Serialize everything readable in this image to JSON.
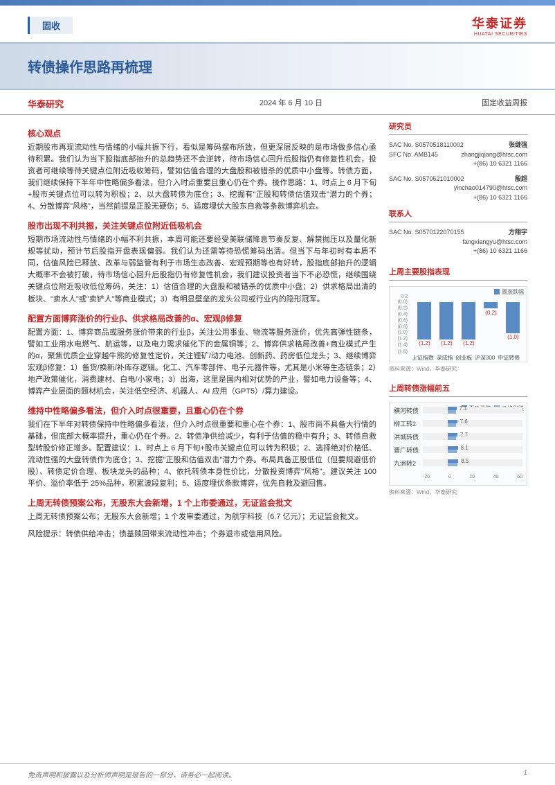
{
  "header": {
    "category": "固收",
    "logo_cn": "华泰证券",
    "logo_en": "HUATAI SECURITIES"
  },
  "title": "转债操作思路再梳理",
  "meta": {
    "source": "华泰研究",
    "date": "2024 年 6 月 10 日",
    "type": "固定收益周报"
  },
  "researchers_title": "研究员",
  "researchers": [
    {
      "name": "张继强",
      "sac": "SAC No. S0570518110002",
      "sfc": "SFC No. AMB145",
      "email": "zhangjiqiang@htsc.com",
      "phone": "+(86) 10 6321 1166"
    },
    {
      "name": "殷超",
      "sac": "SAC No. S0570521010002",
      "sfc": "",
      "email": "yinchao014790@htsc.com",
      "phone": "+(86) 10 6321 1166"
    }
  ],
  "contact_title": "联系人",
  "contacts": [
    {
      "name": "方翔宇",
      "sac": "SAC No. S0570122070155",
      "email": "fangxiangyu@htsc.com",
      "phone": "+(86) 10 6321 1166"
    }
  ],
  "sections": [
    {
      "title": "核心观点",
      "text": "近期股市再现流动性与情绪的小幅共振下行，看似是筹码摆布所致，但更深层反映的是市场做多信心亟待积累。我们认为当下股指底部抬升的总趋势还不会逆转，待市场信心回升后股指仍有修复性机会，投资者可继续等待关键点位附近吸收筹码，譬如估值合理的大盘股和被错杀的优质中小盘等。转债方面，我们继续保持下半年中性略偏多看法，但介入时点重要且重心仍在个券。操作思路：1、时点上 6 月下旬+股市关键点位可以转为积极；2、以大盘转债为底仓；3、挖掘有\"正股和转债估值双击\"潜力的个券；4、分散博弈\"风格\"，当然前提是正股无硬伤；5、适度埋伏大股东自救等条款博弈机会。"
    },
    {
      "title": "股市出现不利共振，关注关键点位附近低吸机会",
      "text": "短期市场流动性与情绪的小幅不利共振，本周可能还要经受美联储降息节奏反复、解禁抛压以及量化新规等扰动，预计节后股指开盘表现偏弱。我们认为还需等待恐慌筹码出清。但当下与年初时有本质不同，估值风险已释放、改革与弱监管有利于市场生态改善、宏观预期等也有好转，股指底部抬升的逻辑大概率不会被打破，待市场信心回升后股指仍有修复性机会，我们建议投资者当下不必恐慌，继续围绕关键点位附近吸收低位筹码，关注：1）估值合理的大盘股和被错杀的优质中小盘；2）供求格局出清的板块、\"卖水人\"或\"卖铲人\"等商业模式；3）有明显壁垒的龙头公司或行业内的隐形冠军。"
    },
    {
      "title": "配置方面博弈涨价的行业β、供求格局改善的α、宏观β修复",
      "text": "配置方面：1、博弈商品或服务涨价带来的行业β，关注公用事业、物流等服务涨价，优先高弹性链条，譬如工业用水电燃气、航运等，以及电力需求催化下的金属铜等；2、博弈供求格局改善+商业模式产生的α，聚焦优质企业穿越牛熊的修复性定价，关注锂矿/动力电池、创新药、药房低位龙头；3、继续博弈宏观β修复：1）备货/换新/补库存逻辑。化工、汽车零部件、电子元器件等，尤其是小米等生态链条；2）地产政策催化，消费建材、白电/小家电；3）出海，这里是国内相对优势的产业，譬如电力设备等；4、博弈产业层面的题材机会，关注低空经济、机器人、AI 应用（GPT5）/算力建设。"
    },
    {
      "title": "维持中性略偏多看法，但介入时点很重要，且重心仍在个券",
      "text": "我们在下半年对转债保持中性略偏多看法，但介入时点很重要和重心在个券：1、股市尚不具备大行情的基础，但底部大概率提升，重心仍在个券。2、转债净供给减少，有利于估值的稳中有升；3、转债自救型转股价修正增多。配置建议：1、时点上 6 月下旬+股市关键点位可以转为积极；2、选择绝对价格低、流动性强的大盘转债作为底仓；3、挖掘\"正股和估值双击\"潜力个券。布局具备正股低位（但要规避低价股）、转债定价合理、板块龙头的品种；4、依托转债本身性价比，分散投资博弈\"风格\"。建议关注 100 平价、溢价率低于 25%品种，积累波段复利；5、适度埋伏条款博弈，优先自救及避回售。"
    },
    {
      "title": "上周无转债预案公布，无股东大会新增，1 个上市委通过，无证监会批文",
      "text": "上周无转债预案公布；无股东大会新增；1 个发审委通过，为航宇科技（6.7 亿元）；无证监会批文。"
    }
  ],
  "risk_label": "风险提示：",
  "risk_text": "转债供给冲击；债基赎回带来流动性冲击；个券退市或信用风险。",
  "chart1": {
    "title": "上周主要股指表现",
    "legend": "周涨跌幅",
    "categories": [
      "上证指数",
      "深成指",
      "创业板",
      "沪深300",
      "中证转债"
    ],
    "values": [
      -1.2,
      -1.2,
      -1.2,
      -0.2,
      -1.0
    ],
    "value_labels": [
      "(1.2)",
      "(1.2)",
      "(1.2)",
      "(0.2)",
      "(1.0)"
    ],
    "ylim": [
      -1.6,
      0.2
    ],
    "ytick_step": 0.2,
    "bar_color": "#5b8bc5",
    "label_color": "#c52a2a",
    "bg": "#fafbfc",
    "source": "资料来源：Wind，华泰研究"
  },
  "chart2": {
    "title": "上周转债涨幅前五",
    "legend1": "平价涨跌",
    "legend2": "价格涨跌",
    "rows": [
      {
        "name": "横河转债",
        "v": 7.1
      },
      {
        "name": "柳工转2",
        "v": 7.6
      },
      {
        "name": "洪城转债",
        "v": 7.7
      },
      {
        "name": "晋广转债",
        "v": 8.1
      },
      {
        "name": "九洲转2",
        "v": 8.5
      }
    ],
    "xrange": [
      -20,
      60
    ],
    "bar1": "#5b8bc5",
    "bar2": "#8ab0da",
    "source": "资料来源：Wind，华泰研究"
  },
  "footer": {
    "disclaimer": "免责声明和披露以及分析师声明是报告的一部分，请务必一起阅读。",
    "page": "1"
  }
}
